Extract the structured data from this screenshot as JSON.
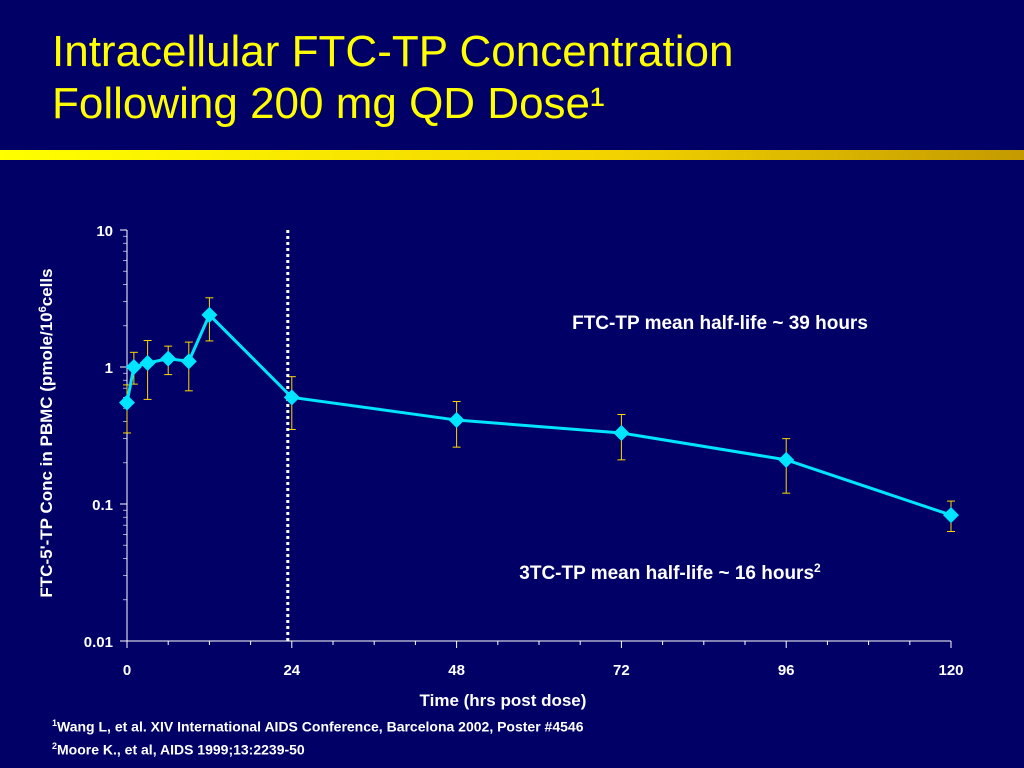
{
  "slide": {
    "title_line1": "Intracellular FTC-TP Concentration",
    "title_line2": "Following 200 mg QD Dose¹",
    "footnotes": [
      {
        "mark": "1",
        "text": "Wang L, et al. XIV International AIDS Conference, Barcelona 2002, Poster #4546"
      },
      {
        "mark": "2",
        "text": "Moore K., et al, AIDS 1999;13:2239-50"
      }
    ]
  },
  "colors": {
    "background": "#000066",
    "title": "#ffff00",
    "series": "#00e5ff",
    "error_bars": "#ffd700",
    "text": "#ffffff"
  },
  "chart_data": {
    "type": "line",
    "title": "",
    "xlabel": "Time (hrs post dose)",
    "ylabel_main": "FTC-5'-TP Conc in PBMC (pmole/10",
    "ylabel_sup": "6",
    "ylabel_end": "cells",
    "y_scale": "log",
    "xlim": [
      0,
      120
    ],
    "ylim": [
      0.01,
      10
    ],
    "x_ticks": [
      0,
      24,
      48,
      72,
      96,
      120
    ],
    "x_tick_labels": [
      "0",
      "24",
      "48",
      "72",
      "96",
      "120"
    ],
    "y_ticks": [
      0.01,
      0.1,
      1,
      10
    ],
    "y_tick_labels": [
      "0.01",
      "0.1",
      "1",
      "10"
    ],
    "grid": false,
    "series": [
      {
        "x": [
          0,
          1,
          3,
          6,
          9,
          12,
          24,
          48,
          72,
          96,
          120
        ],
        "y": [
          0.55,
          1.0,
          1.07,
          1.15,
          1.1,
          2.4,
          0.6,
          0.41,
          0.33,
          0.21,
          0.083
        ],
        "err_low": [
          0.33,
          0.75,
          0.58,
          0.88,
          0.67,
          1.55,
          0.35,
          0.26,
          0.21,
          0.12,
          0.063
        ],
        "err_high": [
          0.74,
          1.28,
          1.56,
          1.42,
          1.52,
          3.2,
          0.85,
          0.56,
          0.45,
          0.3,
          0.105
        ]
      }
    ],
    "vline_x": 24,
    "annotations": [
      {
        "text": "FTC-TP mean half-life ~ 39 hours",
        "sup": ""
      },
      {
        "text": "3TC-TP mean half-life ~ 16 hours",
        "sup": "2"
      }
    ]
  }
}
